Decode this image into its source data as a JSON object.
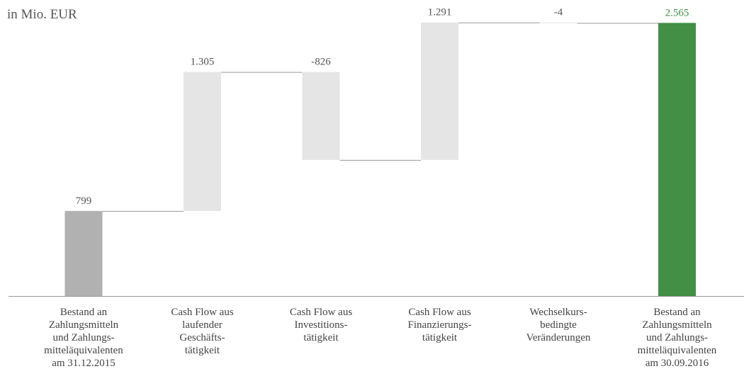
{
  "chart_data": {
    "type": "waterfall",
    "title": "in Mio. EUR",
    "categories": [
      "Bestand an\nZahlungsmitteln\nund Zahlungs-\nmitteläquivalenten\nam 31.12.2015",
      "Cash Flow aus\nlaufender\nGeschäfts-\ntätigkeit",
      "Cash Flow aus\nInvestitions-\ntätigkeit",
      "Cash Flow aus\nFinanzierungs-\ntätigkeit",
      "Wechselkurs-\nbedingte\nVeränderungen",
      "Bestand an\nZahlungsmitteln\nund Zahlungs-\nmitteläquivalenten\nam 30.09.2016"
    ],
    "values": [
      799,
      1305,
      -826,
      1291,
      -4,
      2565
    ],
    "value_labels": [
      "799",
      "1.305",
      "-826",
      "1.291",
      "-4",
      "2.565"
    ],
    "totals": [
      true,
      false,
      false,
      false,
      false,
      true
    ],
    "colors": [
      "#b1b1b1",
      "#e5e5e5",
      "#e5e5e5",
      "#e5e5e5",
      "#e5e5e5",
      "#428f45"
    ],
    "ylim": [
      0,
      2800
    ]
  }
}
